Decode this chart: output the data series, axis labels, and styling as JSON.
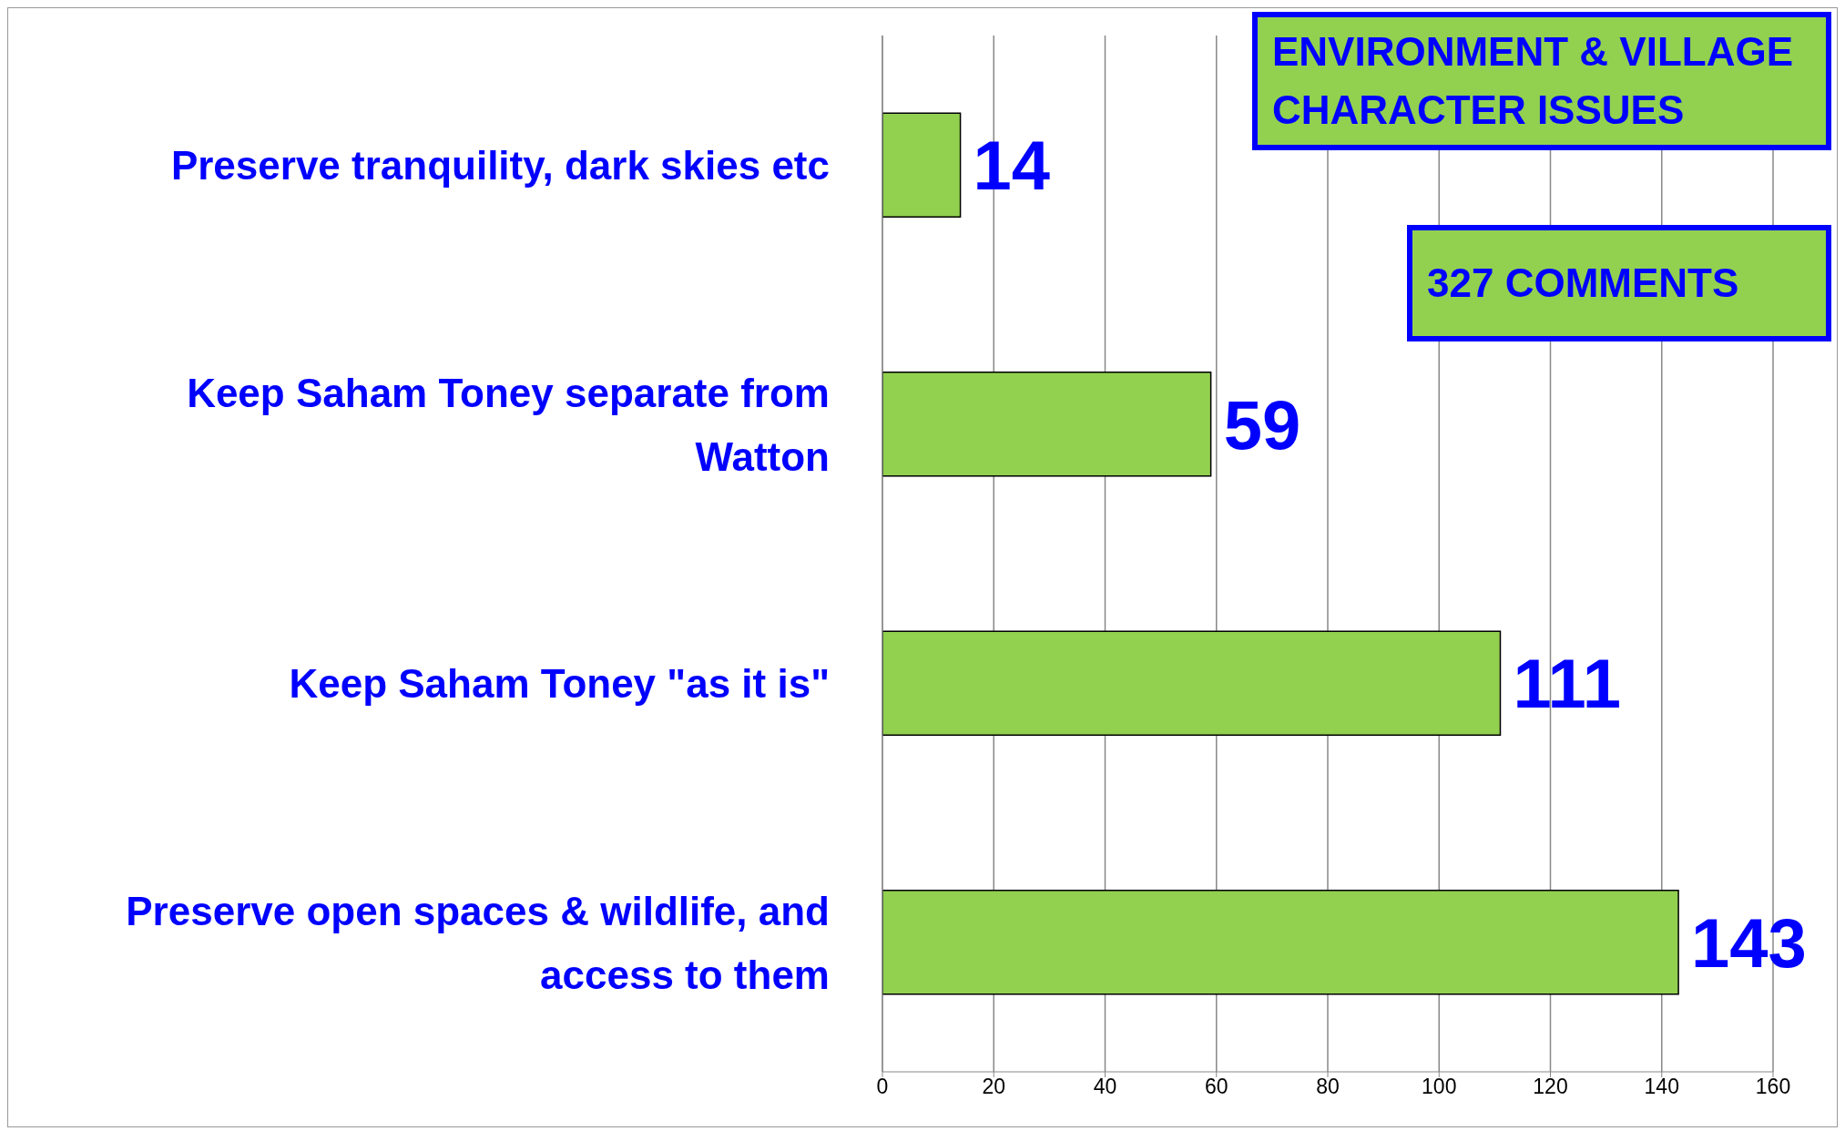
{
  "chart_data": {
    "type": "bar",
    "orientation": "horizontal",
    "title": "ENVIRONMENT & VILLAGE CHARACTER ISSUES",
    "subtitle": "327 COMMENTS",
    "categories": [
      "Preserve tranquility, dark skies etc",
      "Keep Saham Toney separate from Watton",
      "Keep Saham Toney \"as it is\"",
      "Preserve open spaces & wildlife, and access to them"
    ],
    "values": [
      14,
      59,
      111,
      143
    ],
    "color": "#92d050",
    "xlim": [
      0,
      160
    ],
    "xticks": [
      0,
      20,
      40,
      60,
      80,
      100,
      120,
      140,
      160
    ],
    "grid": "x",
    "data_labels": true
  }
}
